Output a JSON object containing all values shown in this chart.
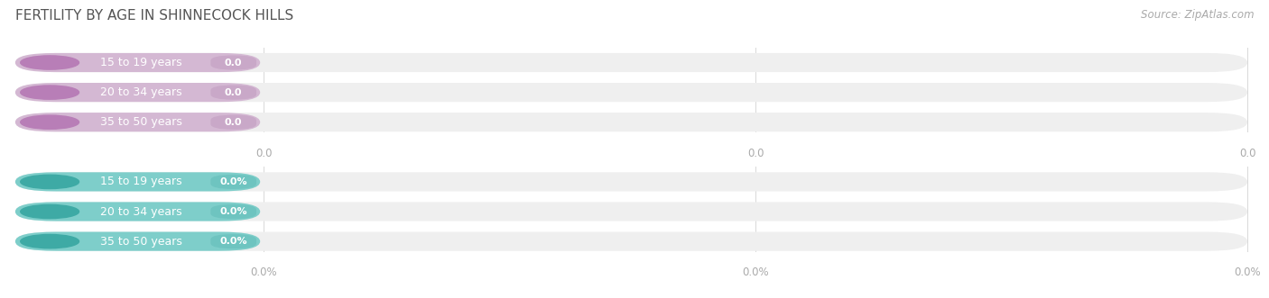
{
  "title": "FERTILITY BY AGE IN SHINNECOCK HILLS",
  "source": "Source: ZipAtlas.com",
  "background_color": "#ffffff",
  "bar_bg_color": "#efefef",
  "top_rows": [
    {
      "label": "15 to 19 years",
      "value": 0.0,
      "display": "0.0"
    },
    {
      "label": "20 to 34 years",
      "value": 0.0,
      "display": "0.0"
    },
    {
      "label": "35 to 50 years",
      "value": 0.0,
      "display": "0.0"
    }
  ],
  "bottom_rows": [
    {
      "label": "15 to 19 years",
      "value": 0.0,
      "display": "0.0%"
    },
    {
      "label": "20 to 34 years",
      "value": 0.0,
      "display": "0.0%"
    },
    {
      "label": "35 to 50 years",
      "value": 0.0,
      "display": "0.0%"
    }
  ],
  "top_bar_color": "#d4b8d3",
  "top_dot_color": "#b87eb7",
  "top_val_color": "#c9a8c8",
  "bottom_bar_color": "#7ececa",
  "bottom_dot_color": "#3eaaa5",
  "bottom_val_color": "#6ec4c0",
  "label_color": "#666666",
  "axis_label_color": "#aaaaaa",
  "title_color": "#555555",
  "source_color": "#aaaaaa",
  "top_axis_label": "0.0",
  "bottom_axis_label": "0.0%",
  "title_fontsize": 11,
  "label_fontsize": 9,
  "value_fontsize": 8,
  "axis_fontsize": 8.5,
  "source_fontsize": 8.5
}
